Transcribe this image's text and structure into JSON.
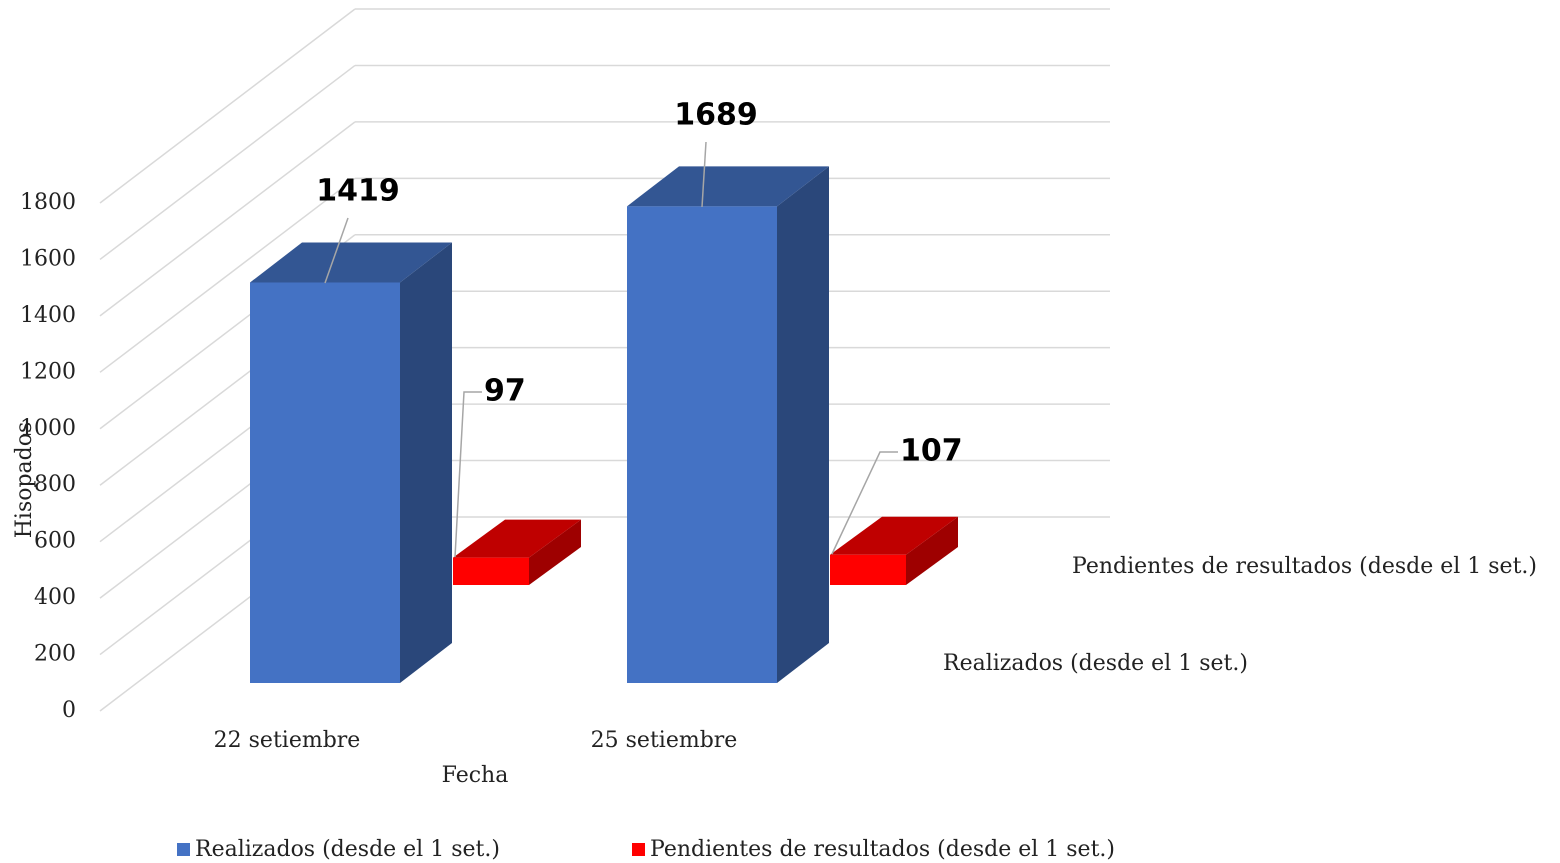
{
  "chart_data": {
    "type": "bar3d",
    "x_label": "Fecha",
    "y_label": "Hisopados",
    "categories": [
      "22 setiembre",
      "25 setiembre"
    ],
    "series": [
      {
        "name": "Realizados (desde el 1 set.)",
        "color": "#4472c4",
        "values": [
          1419,
          1689
        ]
      },
      {
        "name": "Pendientes de resultados (desde el 1 set.)",
        "color": "#ff0000",
        "values": [
          97,
          107
        ]
      }
    ],
    "ylim": [
      0,
      1800
    ],
    "yticks": [
      0,
      200,
      400,
      600,
      800,
      1000,
      1200,
      1400,
      1600,
      1800
    ],
    "grid": true,
    "legend": "bottom"
  }
}
